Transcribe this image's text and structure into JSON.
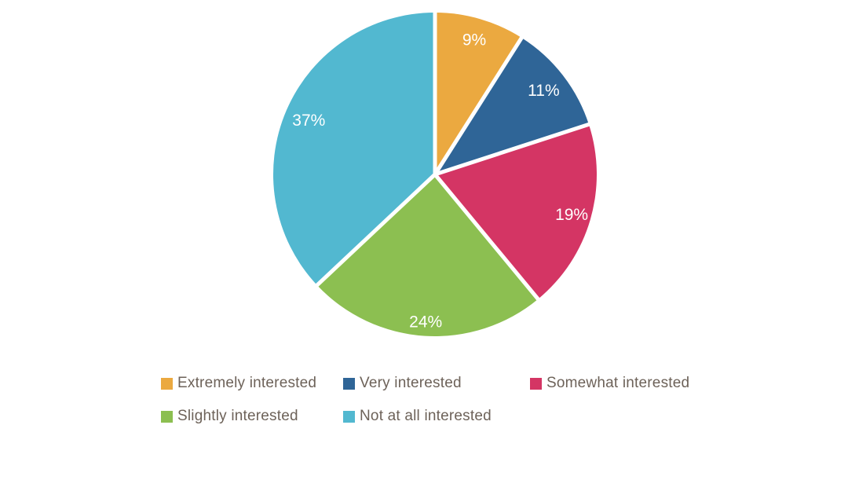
{
  "chart_data": {
    "type": "pie",
    "title": "",
    "categories": [
      "Extremely interested",
      "Very interested",
      "Somewhat interested",
      "Slightly interested",
      "Not at all interested"
    ],
    "values": [
      9,
      11,
      19,
      24,
      37
    ],
    "value_labels": [
      "9%",
      "11%",
      "19%",
      "24%",
      "37%"
    ],
    "colors": [
      "#EBA940",
      "#2F6597",
      "#D43564",
      "#8CBF51",
      "#52B8D0"
    ],
    "start_angle_deg": 0,
    "direction": "clockwise",
    "separator_color": "#FFFFFF",
    "slice_label_color": "#FFFFFF",
    "legend_position": "bottom-left",
    "legend_text_color": "#6D6259"
  }
}
